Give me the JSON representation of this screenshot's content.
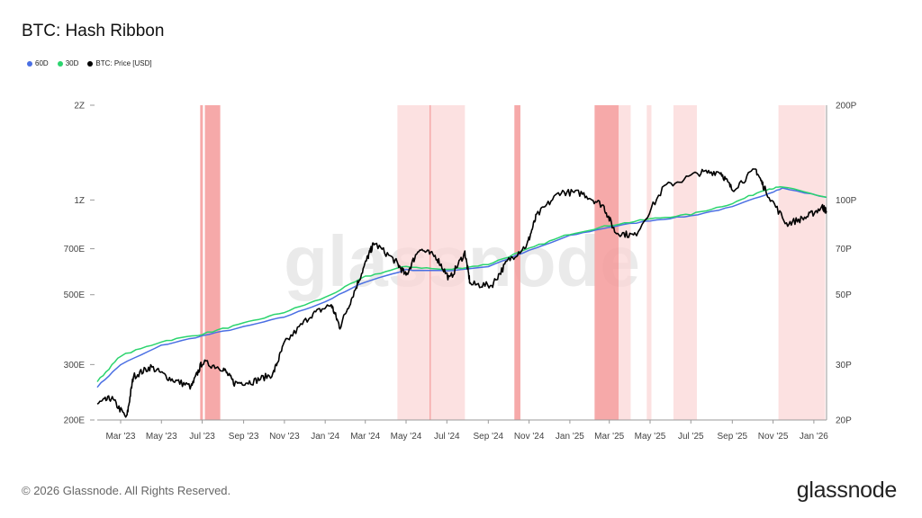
{
  "header": {
    "title": "BTC: Hash Ribbon"
  },
  "footer": {
    "copyright": "© 2026 Glassnode. All Rights Reserved.",
    "logo": "glassnode"
  },
  "watermark": "glassnode",
  "colors": {
    "ma60": "#4a6fe3",
    "ma30": "#2bd46e",
    "price": "#000000",
    "band": "#fbd4d4",
    "band_strong": "#f59a9a"
  },
  "chart_data": {
    "type": "line",
    "title": "BTC: Hash Ribbon",
    "x_range": [
      "2023-01-25",
      "2026-01-20"
    ],
    "x_ticks": [
      "Mar '23",
      "May '23",
      "Jul '23",
      "Sep '23",
      "Nov '23",
      "Jan '24",
      "Mar '24",
      "May '24",
      "Jul '24",
      "Sep '24",
      "Nov '24",
      "Jan '25",
      "Mar '25",
      "May '25",
      "Jul '25",
      "Sep '25",
      "Nov '25",
      "Jan '26"
    ],
    "left_axis": {
      "scale": "log",
      "ticks": [
        "2Z",
        "1Z",
        "700E",
        "500E",
        "300E",
        "200E"
      ],
      "range_label": [
        "200E",
        "2Z"
      ]
    },
    "right_axis": {
      "scale": "log",
      "ticks": [
        "200P",
        "100P",
        "70P",
        "50P",
        "30P",
        "20P"
      ],
      "range_label": [
        "20P",
        "200P"
      ]
    },
    "legend": {
      "placement": "top-left",
      "items": [
        {
          "label": "60D",
          "color": "#4a6fe3"
        },
        {
          "label": "30D",
          "color": "#2bd46e"
        },
        {
          "label": "BTC: Price [USD]",
          "color": "#000000"
        }
      ]
    },
    "series": [
      {
        "name": "60D",
        "axis": "left",
        "points": [
          [
            "2023-01-25",
            255
          ],
          [
            "2023-03-01",
            300
          ],
          [
            "2023-05-01",
            345
          ],
          [
            "2023-07-01",
            370
          ],
          [
            "2023-09-01",
            395
          ],
          [
            "2023-11-01",
            425
          ],
          [
            "2024-01-01",
            475
          ],
          [
            "2024-03-01",
            550
          ],
          [
            "2024-05-01",
            600
          ],
          [
            "2024-07-01",
            595
          ],
          [
            "2024-09-01",
            615
          ],
          [
            "2024-11-01",
            690
          ],
          [
            "2025-01-01",
            770
          ],
          [
            "2025-03-01",
            820
          ],
          [
            "2025-05-01",
            860
          ],
          [
            "2025-07-01",
            890
          ],
          [
            "2025-09-01",
            950
          ],
          [
            "2025-10-20",
            1040
          ],
          [
            "2025-11-15",
            1090
          ],
          [
            "2026-01-20",
            1020
          ]
        ]
      },
      {
        "name": "30D",
        "axis": "left",
        "points": [
          [
            "2023-01-25",
            265
          ],
          [
            "2023-03-01",
            320
          ],
          [
            "2023-05-01",
            355
          ],
          [
            "2023-07-01",
            375
          ],
          [
            "2023-09-01",
            405
          ],
          [
            "2023-11-01",
            440
          ],
          [
            "2024-01-01",
            490
          ],
          [
            "2024-03-01",
            570
          ],
          [
            "2024-05-01",
            615
          ],
          [
            "2024-07-01",
            600
          ],
          [
            "2024-09-01",
            625
          ],
          [
            "2024-11-01",
            700
          ],
          [
            "2025-01-01",
            780
          ],
          [
            "2025-03-01",
            830
          ],
          [
            "2025-05-01",
            870
          ],
          [
            "2025-07-01",
            900
          ],
          [
            "2025-09-01",
            975
          ],
          [
            "2025-10-20",
            1080
          ],
          [
            "2025-11-15",
            1100
          ],
          [
            "2026-01-20",
            1020
          ]
        ]
      },
      {
        "name": "BTC: Price [USD]",
        "axis": "right",
        "points": [
          [
            "2023-01-25",
            22.5
          ],
          [
            "2023-02-15",
            23.5
          ],
          [
            "2023-03-10",
            20.3
          ],
          [
            "2023-03-20",
            27.5
          ],
          [
            "2023-04-15",
            29.5
          ],
          [
            "2023-05-15",
            27
          ],
          [
            "2023-06-15",
            25.5
          ],
          [
            "2023-07-01",
            30.5
          ],
          [
            "2023-08-01",
            29.2
          ],
          [
            "2023-08-18",
            26.2
          ],
          [
            "2023-09-15",
            26.5
          ],
          [
            "2023-10-15",
            28
          ],
          [
            "2023-11-01",
            35
          ],
          [
            "2023-12-10",
            43
          ],
          [
            "2024-01-10",
            46.5
          ],
          [
            "2024-01-23",
            39.5
          ],
          [
            "2024-02-15",
            52
          ],
          [
            "2024-03-05",
            66
          ],
          [
            "2024-03-14",
            73
          ],
          [
            "2024-04-15",
            64
          ],
          [
            "2024-05-01",
            57.5
          ],
          [
            "2024-05-20",
            70
          ],
          [
            "2024-06-15",
            66
          ],
          [
            "2024-07-05",
            56
          ],
          [
            "2024-07-28",
            68
          ],
          [
            "2024-08-05",
            54
          ],
          [
            "2024-09-06",
            53.5
          ],
          [
            "2024-09-30",
            64
          ],
          [
            "2024-10-29",
            72
          ],
          [
            "2024-11-12",
            89
          ],
          [
            "2024-12-17",
            106
          ],
          [
            "2025-01-20",
            105
          ],
          [
            "2025-02-20",
            96
          ],
          [
            "2025-03-10",
            79
          ],
          [
            "2025-04-08",
            77
          ],
          [
            "2025-05-22",
            110
          ],
          [
            "2025-07-14",
            122
          ],
          [
            "2025-08-14",
            123
          ],
          [
            "2025-09-01",
            108
          ],
          [
            "2025-10-06",
            125
          ],
          [
            "2025-10-20",
            108
          ],
          [
            "2025-11-21",
            84
          ],
          [
            "2025-12-20",
            88
          ],
          [
            "2026-01-14",
            95
          ],
          [
            "2026-01-20",
            92
          ]
        ]
      }
    ],
    "highlight_bands": [
      {
        "start": "2023-06-28",
        "end": "2023-07-02",
        "level": "strong"
      },
      {
        "start": "2023-07-05",
        "end": "2023-07-28",
        "level": "strong"
      },
      {
        "start": "2024-04-18",
        "end": "2024-06-05",
        "level": "light"
      },
      {
        "start": "2024-06-05",
        "end": "2024-06-07",
        "level": "strong"
      },
      {
        "start": "2024-06-07",
        "end": "2024-07-28",
        "level": "light"
      },
      {
        "start": "2024-10-10",
        "end": "2024-10-19",
        "level": "strong"
      },
      {
        "start": "2025-02-07",
        "end": "2025-03-15",
        "level": "strong"
      },
      {
        "start": "2025-03-15",
        "end": "2025-04-02",
        "level": "light"
      },
      {
        "start": "2025-04-26",
        "end": "2025-05-03",
        "level": "light"
      },
      {
        "start": "2025-06-05",
        "end": "2025-07-10",
        "level": "light"
      },
      {
        "start": "2025-11-09",
        "end": "2026-01-18",
        "level": "light"
      }
    ],
    "grid": false
  }
}
